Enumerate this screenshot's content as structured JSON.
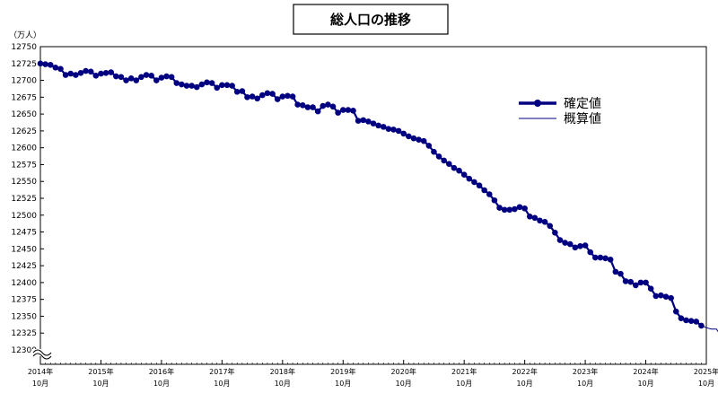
{
  "chart_data": {
    "type": "line",
    "title": "総人口の推移",
    "ylabel": "（万人）",
    "ylim": [
      12300,
      12750
    ],
    "yticks": [
      12300,
      12325,
      12350,
      12375,
      12400,
      12425,
      12450,
      12475,
      12500,
      12525,
      12550,
      12575,
      12600,
      12625,
      12650,
      12675,
      12700,
      12725,
      12750
    ],
    "x_year_labels": [
      "2014年",
      "2015年",
      "2016年",
      "2017年",
      "2018年",
      "2019年",
      "2020年",
      "2021年",
      "2022年",
      "2023年",
      "2024年",
      "2025年"
    ],
    "x_month_label": "10月",
    "x_start": "2014-10",
    "legend_position": "upper-right",
    "series": [
      {
        "name": "確定値",
        "color": "#000080",
        "marker": "circle",
        "values": [
          12725,
          12724,
          12723,
          12719,
          12717,
          12708,
          12710,
          12708,
          12711,
          12714,
          12713,
          12707,
          12710,
          12711,
          12712,
          12706,
          12705,
          12700,
          12703,
          12700,
          12705,
          12708,
          12707,
          12700,
          12704,
          12706,
          12705,
          12696,
          12694,
          12692,
          12692,
          12690,
          12694,
          12697,
          12696,
          12689,
          12693,
          12693,
          12692,
          12683,
          12684,
          12675,
          12676,
          12673,
          12678,
          12681,
          12680,
          12672,
          12676,
          12677,
          12676,
          12664,
          12663,
          12660,
          12660,
          12654,
          12662,
          12664,
          12661,
          12652,
          12656,
          12656,
          12655,
          12640,
          12641,
          12639,
          12636,
          12633,
          12631,
          12628,
          12627,
          12625,
          12621,
          12617,
          12614,
          12612,
          12610,
          12603,
          12594,
          12587,
          12581,
          12576,
          12570,
          12566,
          12560,
          12554,
          12549,
          12544,
          12537,
          12531,
          12522,
          12511,
          12508,
          12508,
          12509,
          12512,
          12510,
          12498,
          12496,
          12492,
          12490,
          12484,
          12474,
          12463,
          12459,
          12457,
          12452,
          12454,
          12455,
          12445,
          12437,
          12437,
          12436,
          12434,
          12416,
          12413,
          12402,
          12401,
          12396,
          12400,
          12400,
          12391,
          12380,
          12381,
          12379,
          12377,
          12357,
          12347,
          12344,
          12343,
          12342,
          12336
        ]
      },
      {
        "name": "概算値",
        "color": "#000080",
        "marker": "none",
        "start_index": 131,
        "values": [
          12336,
          12333,
          12331,
          12331,
          12320,
          12324
        ]
      }
    ]
  }
}
